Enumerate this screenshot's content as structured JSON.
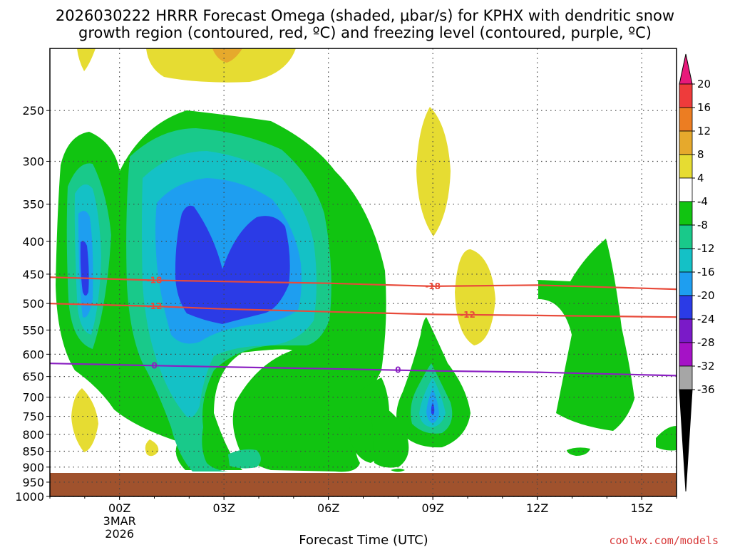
{
  "chart_data": {
    "type": "heatmap",
    "title_line1": "2026030222 HRRR Forecast Omega (shaded, μbar/s) for KPHX with dendritic snow",
    "title_line2": "growth region (contoured, red, ºC) and freezing level (contoured, purple, ºC)",
    "xlabel": "Forecast Time (UTC)",
    "credit": "coolwx.com/models",
    "x_ticks": [
      {
        "label": "00Z",
        "sub1": "3MAR",
        "sub2": "2026",
        "hour": 0
      },
      {
        "label": "03Z",
        "sub1": "",
        "sub2": "",
        "hour": 3
      },
      {
        "label": "06Z",
        "sub1": "",
        "sub2": "",
        "hour": 6
      },
      {
        "label": "09Z",
        "sub1": "",
        "sub2": "",
        "hour": 9
      },
      {
        "label": "12Z",
        "sub1": "",
        "sub2": "",
        "hour": 12
      },
      {
        "label": "15Z",
        "sub1": "",
        "sub2": "",
        "hour": 15
      }
    ],
    "xlim_hours": [
      -2,
      16
    ],
    "y_ticks": [
      250,
      300,
      350,
      400,
      450,
      500,
      550,
      600,
      650,
      700,
      750,
      800,
      850,
      900,
      950,
      1000
    ],
    "ylim_hPa": [
      200,
      1000
    ],
    "y_scale": "log-pressure",
    "grid": true,
    "colorbar": {
      "labels": [
        "20",
        "16",
        "12",
        "8",
        "4",
        "-4",
        "-8",
        "-12",
        "-16",
        "-20",
        "-24",
        "-28",
        "-32",
        "-36"
      ],
      "colors": [
        "#e8197b",
        "#ee3b3b",
        "#ec7d22",
        "#e6a92c",
        "#e6dc32",
        "#ffffff",
        "#11c411",
        "#19c98a",
        "#14c1c6",
        "#1e9ef0",
        "#2b3be6",
        "#7a1ac8",
        "#a512c6",
        "#a6a6a6",
        "#000000"
      ]
    },
    "contours": [
      {
        "label": "-18",
        "color": "#e84a3a",
        "hours": [
          -2,
          1,
          3,
          6,
          9,
          12,
          16
        ],
        "hPa": [
          455,
          460,
          462,
          465,
          470,
          468,
          475
        ]
      },
      {
        "label": "-12",
        "color": "#e84a3a",
        "hours": [
          -2,
          1,
          3,
          6,
          9,
          12,
          16
        ],
        "hPa": [
          500,
          505,
          510,
          515,
          520,
          522,
          525
        ]
      },
      {
        "label": "0",
        "color": "#8a1fc2",
        "hours": [
          -2,
          1,
          3,
          6,
          9,
          12,
          16
        ],
        "hPa": [
          620,
          625,
          628,
          632,
          637,
          640,
          648
        ]
      }
    ],
    "ground_level_hPa": 968
  }
}
